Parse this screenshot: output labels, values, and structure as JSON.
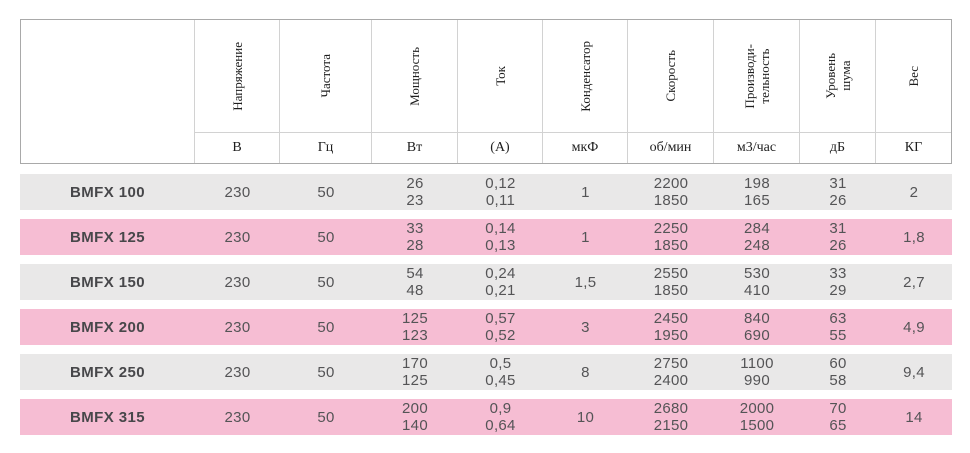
{
  "table": {
    "columns": [
      {
        "label": "",
        "unit": ""
      },
      {
        "label": "Напряжение",
        "unit": "В"
      },
      {
        "label": "Частота",
        "unit": "Гц"
      },
      {
        "label": "Мощность",
        "unit": "Вт"
      },
      {
        "label": "Ток",
        "unit": "(А)"
      },
      {
        "label": "Конденсатор",
        "unit": "мкФ"
      },
      {
        "label": "Скорость",
        "unit": "об/мин"
      },
      {
        "label": "Производи-\nтельность",
        "unit": "м3/час"
      },
      {
        "label": "Уровень\nшума",
        "unit": "дБ"
      },
      {
        "label": "Вес",
        "unit": "КГ"
      }
    ],
    "rows": [
      {
        "name": "BMFX 100",
        "band": "gray",
        "values": [
          "230",
          "50",
          "26\n23",
          "0,12\n0,11",
          "1",
          "2200\n1850",
          "198\n165",
          "31\n26",
          "2"
        ]
      },
      {
        "name": "BMFX 125",
        "band": "pink",
        "values": [
          "230",
          "50",
          "33\n28",
          "0,14\n0,13",
          "1",
          "2250\n1850",
          "284\n248",
          "31\n26",
          "1,8"
        ]
      },
      {
        "name": "BMFX 150",
        "band": "gray",
        "values": [
          "230",
          "50",
          "54\n48",
          "0,24\n0,21",
          "1,5",
          "2550\n1850",
          "530\n410",
          "33\n29",
          "2,7"
        ]
      },
      {
        "name": "BMFX 200",
        "band": "pink",
        "values": [
          "230",
          "50",
          "125\n123",
          "0,57\n0,52",
          "3",
          "2450\n1950",
          "840\n690",
          "63\n55",
          "4,9"
        ]
      },
      {
        "name": "BMFX 250",
        "band": "gray",
        "values": [
          "230",
          "50",
          "170\n125",
          "0,5\n0,45",
          "8",
          "2750\n2400",
          "1100\n990",
          "60\n58",
          "9,4"
        ]
      },
      {
        "name": "BMFX 315",
        "band": "pink",
        "values": [
          "230",
          "50",
          "200\n140",
          "0,9\n0,64",
          "10",
          "2680\n2150",
          "2000\n1500",
          "70\n65",
          "14"
        ]
      }
    ],
    "colors": {
      "row_gray": "#e9e8e8",
      "row_pink": "#f6bdd3",
      "border_outer": "#a9a9a9",
      "border_inner": "#d2d2d2",
      "header_text": "#1e1e1e",
      "data_text": "#545456"
    }
  }
}
